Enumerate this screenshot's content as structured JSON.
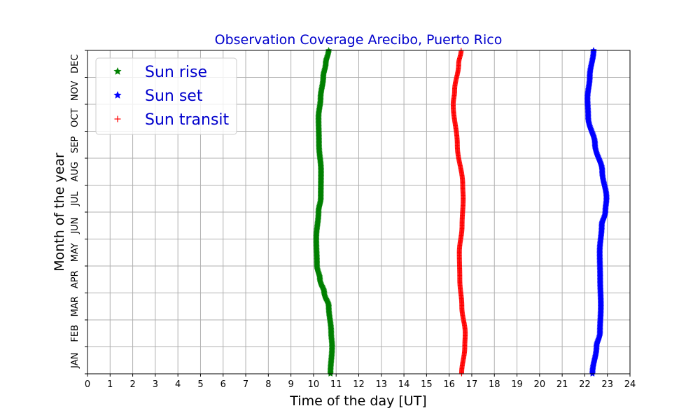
{
  "chart_data": {
    "type": "scatter",
    "title": "Observation Coverage Arecibo, Puerto Rico",
    "xlabel": "Time of the day [UT]",
    "ylabel": "Month of the year",
    "xlim": [
      0,
      24
    ],
    "ylim": [
      0,
      12
    ],
    "grid": true,
    "legend_placement": "top-left",
    "x_ticks": [
      "0",
      "1",
      "2",
      "3",
      "4",
      "5",
      "6",
      "7",
      "8",
      "9",
      "10",
      "11",
      "12",
      "13",
      "14",
      "15",
      "16",
      "17",
      "18",
      "19",
      "20",
      "21",
      "22",
      "23",
      "24"
    ],
    "y_ticks": [
      "JAN",
      "FEB",
      "MAR",
      "APR",
      "MAY",
      "JUN",
      "JUL",
      "AUG",
      "SEP",
      "OCT",
      "NOV",
      "DEC"
    ],
    "series": [
      {
        "name": "Sun rise",
        "marker": "star",
        "color": "#008000",
        "x": [
          10.75,
          10.82,
          10.78,
          10.67,
          10.47,
          10.28,
          10.15,
          10.12,
          10.22,
          10.32,
          10.33,
          10.24,
          10.22,
          10.31,
          10.43,
          10.54,
          10.67
        ],
        "y": [
          0.0,
          1.0,
          1.5,
          2.5,
          3.0,
          3.5,
          4.0,
          5.0,
          6.0,
          6.5,
          7.5,
          8.5,
          9.5,
          10.2,
          11.0,
          11.5,
          12.0
        ]
      },
      {
        "name": "Sun set",
        "marker": "star",
        "color": "#0000ff",
        "x": [
          22.34,
          22.52,
          22.67,
          22.71,
          22.68,
          22.66,
          22.75,
          22.91,
          22.96,
          22.77,
          22.45,
          22.15,
          22.12,
          22.22,
          22.39
        ],
        "y": [
          0.0,
          1.0,
          1.5,
          2.5,
          3.5,
          4.5,
          5.5,
          6.0,
          6.5,
          7.5,
          8.5,
          9.5,
          10.2,
          11.0,
          12.0
        ]
      },
      {
        "name": "Sun transit",
        "marker": "plus",
        "color": "#ff0000",
        "x": [
          16.55,
          16.69,
          16.71,
          16.56,
          16.47,
          16.45,
          16.57,
          16.62,
          16.6,
          16.36,
          16.18,
          16.24,
          16.42,
          16.53
        ],
        "y": [
          0.0,
          1.0,
          1.5,
          2.5,
          3.5,
          4.5,
          5.5,
          6.5,
          7.0,
          8.5,
          10.0,
          10.5,
          11.5,
          12.0
        ]
      }
    ]
  }
}
